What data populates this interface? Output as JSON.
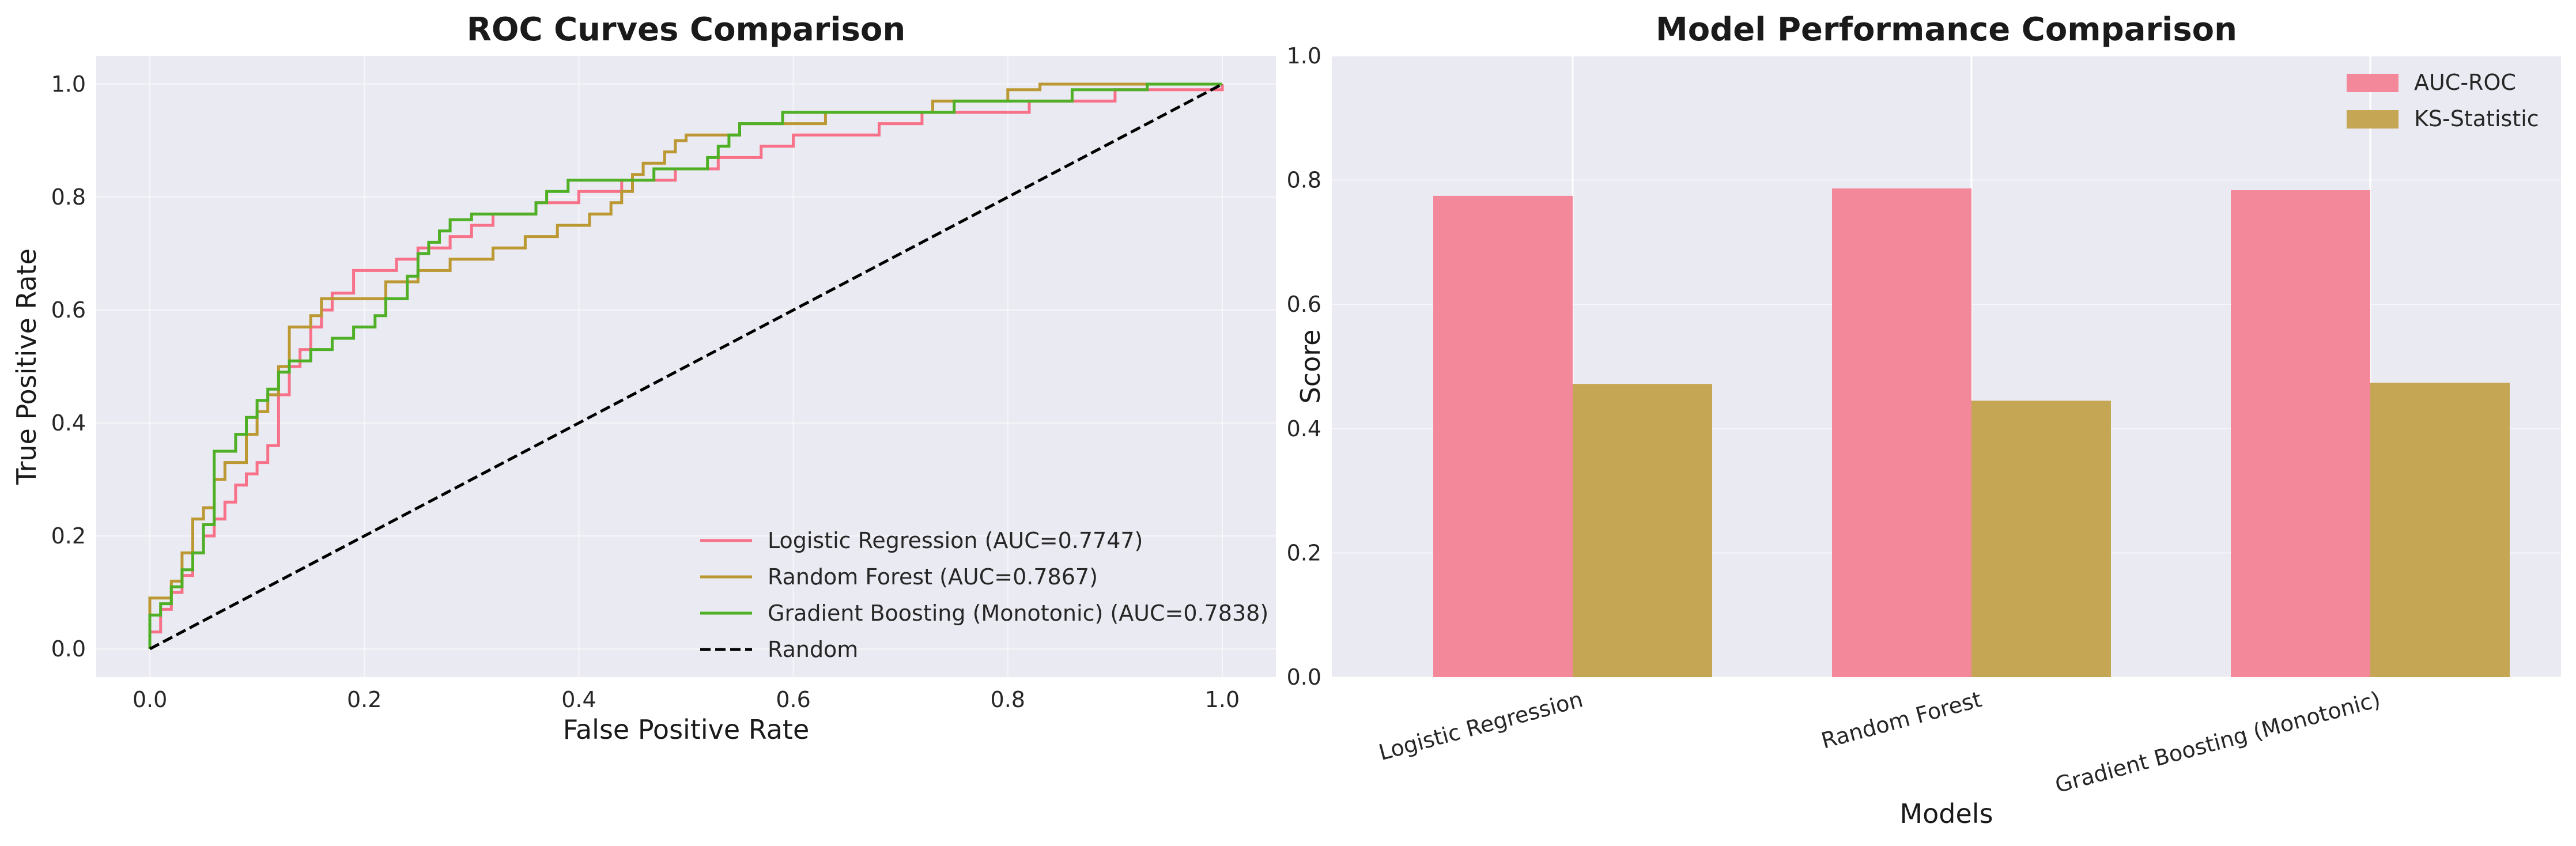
{
  "chart_data": [
    {
      "type": "line",
      "title": "ROC Curves Comparison",
      "xlabel": "False Positive Rate",
      "ylabel": "True Positive Rate",
      "xlim": [
        -0.05,
        1.05
      ],
      "ylim": [
        -0.05,
        1.05
      ],
      "xticks": [
        0.0,
        0.2,
        0.4,
        0.6,
        0.8,
        1.0
      ],
      "yticks": [
        0.0,
        0.2,
        0.4,
        0.6,
        0.8,
        1.0
      ],
      "xtick_labels": [
        "0.0",
        "0.2",
        "0.4",
        "0.6",
        "0.8",
        "1.0"
      ],
      "ytick_labels": [
        "0.0",
        "0.2",
        "0.4",
        "0.6",
        "0.8",
        "1.0"
      ],
      "grid": true,
      "legend_position": "lower-right",
      "series": [
        {
          "name": "Logistic Regression (AUC=0.7747)",
          "color": "#f77189",
          "style": "solid",
          "step": true,
          "points": [
            [
              0,
              0
            ],
            [
              0,
              0.03
            ],
            [
              0.01,
              0.03
            ],
            [
              0.01,
              0.07
            ],
            [
              0.02,
              0.07
            ],
            [
              0.02,
              0.1
            ],
            [
              0.03,
              0.1
            ],
            [
              0.03,
              0.13
            ],
            [
              0.04,
              0.13
            ],
            [
              0.04,
              0.17
            ],
            [
              0.05,
              0.17
            ],
            [
              0.05,
              0.2
            ],
            [
              0.06,
              0.2
            ],
            [
              0.06,
              0.23
            ],
            [
              0.07,
              0.23
            ],
            [
              0.07,
              0.26
            ],
            [
              0.08,
              0.26
            ],
            [
              0.08,
              0.29
            ],
            [
              0.09,
              0.29
            ],
            [
              0.09,
              0.31
            ],
            [
              0.1,
              0.31
            ],
            [
              0.1,
              0.33
            ],
            [
              0.11,
              0.33
            ],
            [
              0.11,
              0.36
            ],
            [
              0.12,
              0.36
            ],
            [
              0.12,
              0.38
            ],
            [
              0.12,
              0.45
            ],
            [
              0.13,
              0.45
            ],
            [
              0.13,
              0.5
            ],
            [
              0.14,
              0.5
            ],
            [
              0.14,
              0.53
            ],
            [
              0.15,
              0.53
            ],
            [
              0.15,
              0.57
            ],
            [
              0.16,
              0.57
            ],
            [
              0.16,
              0.6
            ],
            [
              0.17,
              0.6
            ],
            [
              0.17,
              0.63
            ],
            [
              0.19,
              0.63
            ],
            [
              0.19,
              0.67
            ],
            [
              0.23,
              0.67
            ],
            [
              0.23,
              0.69
            ],
            [
              0.25,
              0.69
            ],
            [
              0.25,
              0.71
            ],
            [
              0.28,
              0.71
            ],
            [
              0.28,
              0.73
            ],
            [
              0.3,
              0.73
            ],
            [
              0.3,
              0.75
            ],
            [
              0.32,
              0.75
            ],
            [
              0.32,
              0.77
            ],
            [
              0.36,
              0.77
            ],
            [
              0.36,
              0.79
            ],
            [
              0.4,
              0.79
            ],
            [
              0.4,
              0.81
            ],
            [
              0.44,
              0.81
            ],
            [
              0.44,
              0.83
            ],
            [
              0.49,
              0.83
            ],
            [
              0.49,
              0.85
            ],
            [
              0.53,
              0.85
            ],
            [
              0.53,
              0.87
            ],
            [
              0.57,
              0.87
            ],
            [
              0.57,
              0.89
            ],
            [
              0.6,
              0.89
            ],
            [
              0.6,
              0.91
            ],
            [
              0.68,
              0.91
            ],
            [
              0.68,
              0.93
            ],
            [
              0.72,
              0.93
            ],
            [
              0.72,
              0.95
            ],
            [
              0.82,
              0.95
            ],
            [
              0.82,
              0.97
            ],
            [
              0.9,
              0.97
            ],
            [
              0.9,
              0.99
            ],
            [
              1.0,
              0.99
            ],
            [
              1.0,
              1.0
            ]
          ]
        },
        {
          "name": "Random Forest (AUC=0.7867)",
          "color": "#bb9832",
          "style": "solid",
          "step": true,
          "points": [
            [
              0,
              0
            ],
            [
              0,
              0.09
            ],
            [
              0.02,
              0.09
            ],
            [
              0.02,
              0.12
            ],
            [
              0.03,
              0.12
            ],
            [
              0.03,
              0.17
            ],
            [
              0.04,
              0.17
            ],
            [
              0.04,
              0.23
            ],
            [
              0.05,
              0.23
            ],
            [
              0.05,
              0.25
            ],
            [
              0.06,
              0.25
            ],
            [
              0.06,
              0.3
            ],
            [
              0.07,
              0.3
            ],
            [
              0.07,
              0.33
            ],
            [
              0.09,
              0.33
            ],
            [
              0.09,
              0.38
            ],
            [
              0.1,
              0.38
            ],
            [
              0.1,
              0.42
            ],
            [
              0.11,
              0.42
            ],
            [
              0.11,
              0.45
            ],
            [
              0.12,
              0.45
            ],
            [
              0.12,
              0.5
            ],
            [
              0.13,
              0.5
            ],
            [
              0.13,
              0.57
            ],
            [
              0.15,
              0.57
            ],
            [
              0.15,
              0.59
            ],
            [
              0.16,
              0.59
            ],
            [
              0.16,
              0.62
            ],
            [
              0.22,
              0.62
            ],
            [
              0.22,
              0.65
            ],
            [
              0.25,
              0.65
            ],
            [
              0.25,
              0.67
            ],
            [
              0.28,
              0.67
            ],
            [
              0.28,
              0.69
            ],
            [
              0.32,
              0.69
            ],
            [
              0.32,
              0.71
            ],
            [
              0.35,
              0.71
            ],
            [
              0.35,
              0.73
            ],
            [
              0.38,
              0.73
            ],
            [
              0.38,
              0.75
            ],
            [
              0.41,
              0.75
            ],
            [
              0.41,
              0.77
            ],
            [
              0.43,
              0.77
            ],
            [
              0.43,
              0.79
            ],
            [
              0.44,
              0.79
            ],
            [
              0.44,
              0.81
            ],
            [
              0.45,
              0.81
            ],
            [
              0.45,
              0.84
            ],
            [
              0.46,
              0.84
            ],
            [
              0.46,
              0.86
            ],
            [
              0.48,
              0.86
            ],
            [
              0.48,
              0.88
            ],
            [
              0.49,
              0.88
            ],
            [
              0.49,
              0.9
            ],
            [
              0.5,
              0.9
            ],
            [
              0.5,
              0.91
            ],
            [
              0.55,
              0.91
            ],
            [
              0.55,
              0.93
            ],
            [
              0.63,
              0.93
            ],
            [
              0.63,
              0.95
            ],
            [
              0.73,
              0.95
            ],
            [
              0.73,
              0.97
            ],
            [
              0.8,
              0.97
            ],
            [
              0.8,
              0.99
            ],
            [
              0.83,
              0.99
            ],
            [
              0.83,
              1.0
            ],
            [
              1.0,
              1.0
            ]
          ]
        },
        {
          "name": "Gradient Boosting (Monotonic) (AUC=0.7838)",
          "color": "#4fb026",
          "style": "solid",
          "step": true,
          "points": [
            [
              0,
              0
            ],
            [
              0,
              0.06
            ],
            [
              0.01,
              0.06
            ],
            [
              0.01,
              0.08
            ],
            [
              0.02,
              0.08
            ],
            [
              0.02,
              0.11
            ],
            [
              0.03,
              0.11
            ],
            [
              0.03,
              0.14
            ],
            [
              0.04,
              0.14
            ],
            [
              0.04,
              0.17
            ],
            [
              0.05,
              0.17
            ],
            [
              0.05,
              0.22
            ],
            [
              0.06,
              0.22
            ],
            [
              0.06,
              0.27
            ],
            [
              0.06,
              0.35
            ],
            [
              0.08,
              0.35
            ],
            [
              0.08,
              0.38
            ],
            [
              0.09,
              0.38
            ],
            [
              0.09,
              0.41
            ],
            [
              0.1,
              0.41
            ],
            [
              0.1,
              0.44
            ],
            [
              0.11,
              0.44
            ],
            [
              0.11,
              0.46
            ],
            [
              0.12,
              0.46
            ],
            [
              0.12,
              0.49
            ],
            [
              0.13,
              0.49
            ],
            [
              0.13,
              0.51
            ],
            [
              0.15,
              0.51
            ],
            [
              0.15,
              0.53
            ],
            [
              0.17,
              0.53
            ],
            [
              0.17,
              0.55
            ],
            [
              0.19,
              0.55
            ],
            [
              0.19,
              0.57
            ],
            [
              0.21,
              0.57
            ],
            [
              0.21,
              0.59
            ],
            [
              0.22,
              0.59
            ],
            [
              0.22,
              0.62
            ],
            [
              0.24,
              0.62
            ],
            [
              0.24,
              0.66
            ],
            [
              0.25,
              0.66
            ],
            [
              0.25,
              0.7
            ],
            [
              0.26,
              0.7
            ],
            [
              0.26,
              0.72
            ],
            [
              0.27,
              0.72
            ],
            [
              0.27,
              0.74
            ],
            [
              0.28,
              0.74
            ],
            [
              0.28,
              0.76
            ],
            [
              0.3,
              0.76
            ],
            [
              0.3,
              0.77
            ],
            [
              0.36,
              0.77
            ],
            [
              0.36,
              0.79
            ],
            [
              0.37,
              0.79
            ],
            [
              0.37,
              0.81
            ],
            [
              0.39,
              0.81
            ],
            [
              0.39,
              0.83
            ],
            [
              0.47,
              0.83
            ],
            [
              0.47,
              0.85
            ],
            [
              0.52,
              0.85
            ],
            [
              0.52,
              0.87
            ],
            [
              0.53,
              0.87
            ],
            [
              0.53,
              0.89
            ],
            [
              0.54,
              0.89
            ],
            [
              0.54,
              0.91
            ],
            [
              0.55,
              0.91
            ],
            [
              0.55,
              0.93
            ],
            [
              0.59,
              0.93
            ],
            [
              0.59,
              0.95
            ],
            [
              0.75,
              0.95
            ],
            [
              0.75,
              0.97
            ],
            [
              0.86,
              0.97
            ],
            [
              0.86,
              0.99
            ],
            [
              0.93,
              0.99
            ],
            [
              0.93,
              1.0
            ],
            [
              1.0,
              1.0
            ]
          ]
        },
        {
          "name": "Random",
          "color": "#000000",
          "style": "dashed",
          "step": false,
          "points": [
            [
              0,
              0
            ],
            [
              1,
              1
            ]
          ]
        }
      ]
    },
    {
      "type": "bar",
      "title": "Model Performance Comparison",
      "xlabel": "Models",
      "ylabel": "Score",
      "ylim": [
        0,
        1.0
      ],
      "yticks": [
        0.0,
        0.2,
        0.4,
        0.6,
        0.8,
        1.0
      ],
      "ytick_labels": [
        "0.0",
        "0.2",
        "0.4",
        "0.6",
        "0.8",
        "1.0"
      ],
      "grid": true,
      "legend_position": "top-right",
      "categories": [
        "Logistic Regression",
        "Random Forest",
        "Gradient Boosting (Monotonic)"
      ],
      "series": [
        {
          "name": "AUC-ROC",
          "color": "#f3889b",
          "values": [
            0.7747,
            0.7867,
            0.7838
          ]
        },
        {
          "name": "KS-Statistic",
          "color": "#c4a655",
          "values": [
            0.472,
            0.445,
            0.474
          ]
        }
      ]
    }
  ]
}
